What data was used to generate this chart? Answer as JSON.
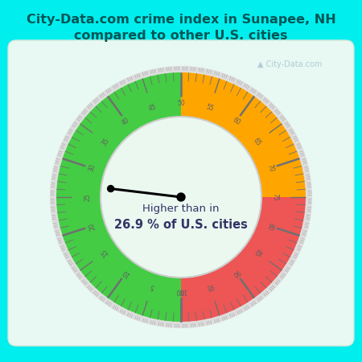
{
  "title_line1": "City-Data.com crime index in Sunapee, NH",
  "title_line2": "compared to other U.S. cities",
  "title_color": "#005555",
  "title_fontsize": 11.5,
  "background_color": "#00EEEE",
  "gauge_area_color": "#ddf5ec",
  "needle_value": 26.9,
  "center_text_line1": "Higher than in",
  "center_text_line2": "26.9 % of U.S. cities",
  "center_text_color": "#333366",
  "watermark": "City-Data.com",
  "green_color": "#44CC44",
  "orange_color": "#FFA500",
  "red_color": "#EE5555",
  "outer_ring_light": "#E0E0E0",
  "outer_border_color": "#C8C8C8",
  "inner_bg_color": "#eaf8f0",
  "tick_color": "#707070",
  "label_color": "#606060",
  "green_range": [
    0,
    50
  ],
  "orange_range": [
    50,
    75
  ],
  "red_range": [
    75,
    100
  ]
}
